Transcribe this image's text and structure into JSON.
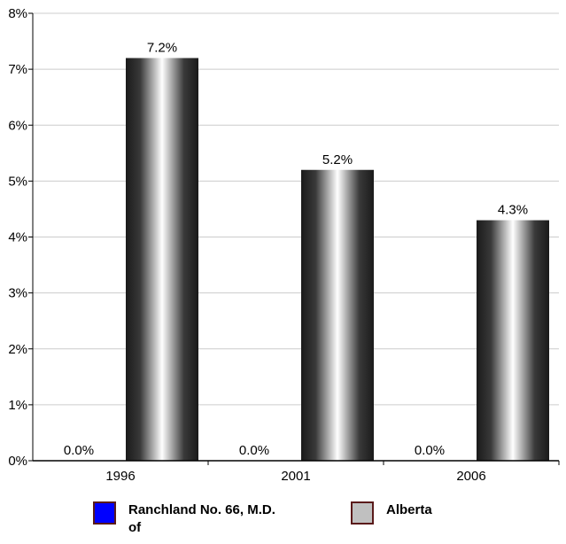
{
  "chart_data": {
    "type": "bar",
    "categories": [
      "1996",
      "2001",
      "2006"
    ],
    "series": [
      {
        "name": "Ranchland No. 66, M.D. of",
        "values": [
          0.0,
          0.0,
          0.0
        ],
        "labels": [
          "0.0%",
          "0.0%",
          "0.0%"
        ],
        "color": "#0000ff"
      },
      {
        "name": "Alberta",
        "values": [
          7.2,
          5.2,
          4.3
        ],
        "labels": [
          "7.2%",
          "5.2%",
          "4.3%"
        ],
        "color": "#c0c0c0"
      }
    ],
    "y_ticks": [
      "0%",
      "1%",
      "2%",
      "3%",
      "4%",
      "5%",
      "6%",
      "7%",
      "8%"
    ],
    "ylim": [
      0,
      8
    ],
    "grid": true,
    "legend_position": "bottom"
  },
  "legend": {
    "items": [
      {
        "label": "Ranchland No. 66, M.D. of",
        "color": "#0000ff"
      },
      {
        "label": "Alberta",
        "color": "#c0c0c0"
      }
    ]
  }
}
